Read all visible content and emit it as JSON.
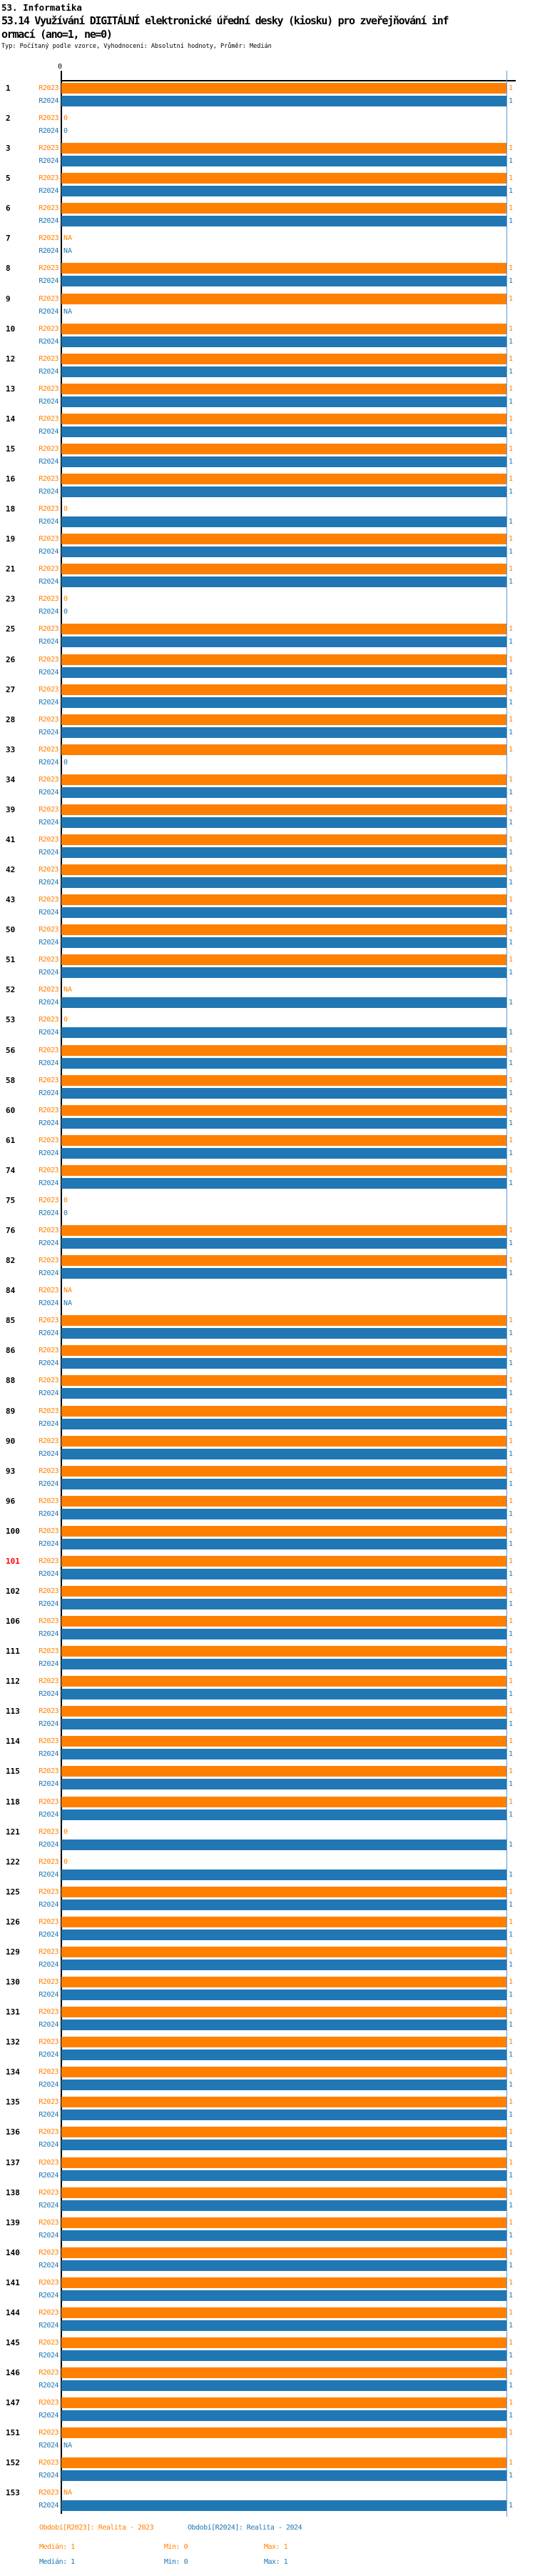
{
  "header": {
    "section": "53. Informatika",
    "title_line1": "53.14 Využívání DIGITÁLNÍ elektronické úřední desky (kiosku) pro zveřejňování inf",
    "title_line2": "ormací (ano=1, ne=0)",
    "meta": "Typ: Počítaný podle vzorce, Vyhodnocení: Absolutní hodnoty, Průměr: Medián"
  },
  "axis": {
    "zero_label": "0",
    "max_value": 1
  },
  "colors": {
    "r2023": "#ff8000",
    "r2024": "#2077b4",
    "highlight_id": "#ff0000",
    "axis": "#000000",
    "max_gridline": "#5b9bd5"
  },
  "legend": {
    "r2023": "Období[R2023]: Realita - 2023",
    "r2024": "Období[R2024]: Realita - 2024"
  },
  "stats": {
    "r2023": {
      "median": "Medián: 1",
      "min": "Min: 0",
      "max": "Max: 1"
    },
    "r2024": {
      "median": "Medián: 1",
      "min": "Min: 0",
      "max": "Max: 1"
    }
  },
  "chart_data": {
    "type": "bar",
    "orientation": "horizontal",
    "title": "53.14 Využívání DIGITÁLNÍ elektronické úřední desky (kiosku) pro zveřejňování informací (ano=1, ne=0)",
    "series": [
      {
        "name": "R2023",
        "label_color": "#ff8000"
      },
      {
        "name": "R2024",
        "label_color": "#2077b4"
      }
    ],
    "value_range": [
      0,
      1
    ],
    "na_text": "NA",
    "highlighted_ids": [
      "101"
    ],
    "rows": [
      {
        "id": "1",
        "r2023": 1,
        "r2024": 1
      },
      {
        "id": "2",
        "r2023": 0,
        "r2024": 0
      },
      {
        "id": "3",
        "r2023": 1,
        "r2024": 1
      },
      {
        "id": "5",
        "r2023": 1,
        "r2024": 1
      },
      {
        "id": "6",
        "r2023": 1,
        "r2024": 1
      },
      {
        "id": "7",
        "r2023": "NA",
        "r2024": "NA"
      },
      {
        "id": "8",
        "r2023": 1,
        "r2024": 1
      },
      {
        "id": "9",
        "r2023": 1,
        "r2024": "NA"
      },
      {
        "id": "10",
        "r2023": 1,
        "r2024": 1
      },
      {
        "id": "12",
        "r2023": 1,
        "r2024": 1
      },
      {
        "id": "13",
        "r2023": 1,
        "r2024": 1
      },
      {
        "id": "14",
        "r2023": 1,
        "r2024": 1
      },
      {
        "id": "15",
        "r2023": 1,
        "r2024": 1
      },
      {
        "id": "16",
        "r2023": 1,
        "r2024": 1
      },
      {
        "id": "18",
        "r2023": 0,
        "r2024": 1
      },
      {
        "id": "19",
        "r2023": 1,
        "r2024": 1
      },
      {
        "id": "21",
        "r2023": 1,
        "r2024": 1
      },
      {
        "id": "23",
        "r2023": 0,
        "r2024": 0
      },
      {
        "id": "25",
        "r2023": 1,
        "r2024": 1
      },
      {
        "id": "26",
        "r2023": 1,
        "r2024": 1
      },
      {
        "id": "27",
        "r2023": 1,
        "r2024": 1
      },
      {
        "id": "28",
        "r2023": 1,
        "r2024": 1
      },
      {
        "id": "33",
        "r2023": 1,
        "r2024": 0
      },
      {
        "id": "34",
        "r2023": 1,
        "r2024": 1
      },
      {
        "id": "39",
        "r2023": 1,
        "r2024": 1
      },
      {
        "id": "41",
        "r2023": 1,
        "r2024": 1
      },
      {
        "id": "42",
        "r2023": 1,
        "r2024": 1
      },
      {
        "id": "43",
        "r2023": 1,
        "r2024": 1
      },
      {
        "id": "50",
        "r2023": 1,
        "r2024": 1
      },
      {
        "id": "51",
        "r2023": 1,
        "r2024": 1
      },
      {
        "id": "52",
        "r2023": "NA",
        "r2024": 1
      },
      {
        "id": "53",
        "r2023": 0,
        "r2024": 1
      },
      {
        "id": "56",
        "r2023": 1,
        "r2024": 1
      },
      {
        "id": "58",
        "r2023": 1,
        "r2024": 1
      },
      {
        "id": "60",
        "r2023": 1,
        "r2024": 1
      },
      {
        "id": "61",
        "r2023": 1,
        "r2024": 1
      },
      {
        "id": "74",
        "r2023": 1,
        "r2024": 1
      },
      {
        "id": "75",
        "r2023": 0,
        "r2024": 0
      },
      {
        "id": "76",
        "r2023": 1,
        "r2024": 1
      },
      {
        "id": "82",
        "r2023": 1,
        "r2024": 1
      },
      {
        "id": "84",
        "r2023": "NA",
        "r2024": "NA"
      },
      {
        "id": "85",
        "r2023": 1,
        "r2024": 1
      },
      {
        "id": "86",
        "r2023": 1,
        "r2024": 1
      },
      {
        "id": "88",
        "r2023": 1,
        "r2024": 1
      },
      {
        "id": "89",
        "r2023": 1,
        "r2024": 1
      },
      {
        "id": "90",
        "r2023": 1,
        "r2024": 1
      },
      {
        "id": "93",
        "r2023": 1,
        "r2024": 1
      },
      {
        "id": "96",
        "r2023": 1,
        "r2024": 1
      },
      {
        "id": "100",
        "r2023": 1,
        "r2024": 1
      },
      {
        "id": "101",
        "r2023": 1,
        "r2024": 1
      },
      {
        "id": "102",
        "r2023": 1,
        "r2024": 1
      },
      {
        "id": "106",
        "r2023": 1,
        "r2024": 1
      },
      {
        "id": "111",
        "r2023": 1,
        "r2024": 1
      },
      {
        "id": "112",
        "r2023": 1,
        "r2024": 1
      },
      {
        "id": "113",
        "r2023": 1,
        "r2024": 1
      },
      {
        "id": "114",
        "r2023": 1,
        "r2024": 1
      },
      {
        "id": "115",
        "r2023": 1,
        "r2024": 1
      },
      {
        "id": "118",
        "r2023": 1,
        "r2024": 1
      },
      {
        "id": "121",
        "r2023": 0,
        "r2024": 1
      },
      {
        "id": "122",
        "r2023": 0,
        "r2024": 1
      },
      {
        "id": "125",
        "r2023": 1,
        "r2024": 1
      },
      {
        "id": "126",
        "r2023": 1,
        "r2024": 1
      },
      {
        "id": "129",
        "r2023": 1,
        "r2024": 1
      },
      {
        "id": "130",
        "r2023": 1,
        "r2024": 1
      },
      {
        "id": "131",
        "r2023": 1,
        "r2024": 1
      },
      {
        "id": "132",
        "r2023": 1,
        "r2024": 1
      },
      {
        "id": "134",
        "r2023": 1,
        "r2024": 1
      },
      {
        "id": "135",
        "r2023": 1,
        "r2024": 1
      },
      {
        "id": "136",
        "r2023": 1,
        "r2024": 1
      },
      {
        "id": "137",
        "r2023": 1,
        "r2024": 1
      },
      {
        "id": "138",
        "r2023": 1,
        "r2024": 1
      },
      {
        "id": "139",
        "r2023": 1,
        "r2024": 1
      },
      {
        "id": "140",
        "r2023": 1,
        "r2024": 1
      },
      {
        "id": "141",
        "r2023": 1,
        "r2024": 1
      },
      {
        "id": "144",
        "r2023": 1,
        "r2024": 1
      },
      {
        "id": "145",
        "r2023": 1,
        "r2024": 1
      },
      {
        "id": "146",
        "r2023": 1,
        "r2024": 1
      },
      {
        "id": "147",
        "r2023": 1,
        "r2024": 1
      },
      {
        "id": "151",
        "r2023": 1,
        "r2024": "NA"
      },
      {
        "id": "152",
        "r2023": 1,
        "r2024": 1
      },
      {
        "id": "153",
        "r2023": "NA",
        "r2024": 1
      }
    ]
  }
}
